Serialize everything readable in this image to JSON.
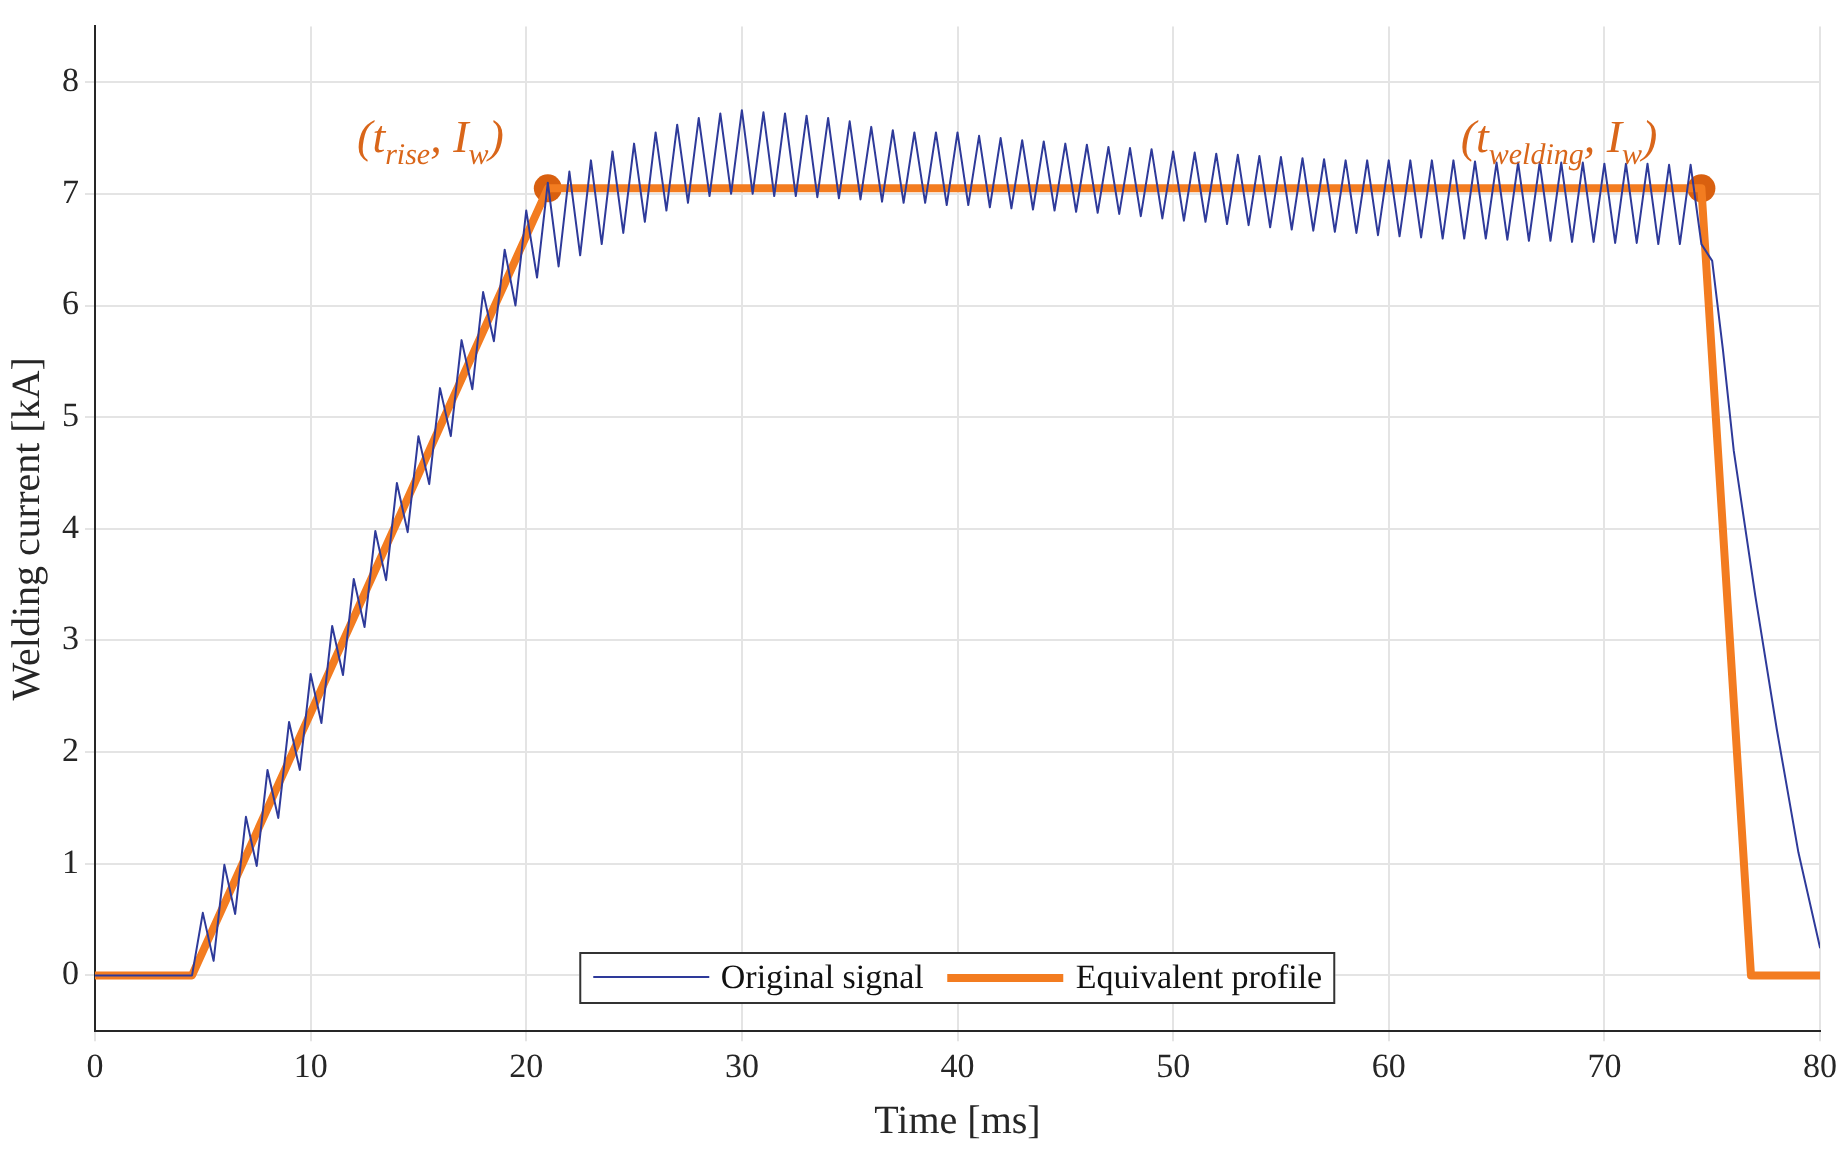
{
  "chart_data": {
    "type": "line",
    "xlabel": "Time [ms]",
    "ylabel": "Welding current [kA]",
    "xlim": [
      0,
      80
    ],
    "xticks": [
      0,
      10,
      20,
      30,
      40,
      50,
      60,
      70,
      80
    ],
    "ylim": [
      -0.5,
      8.5
    ],
    "yticks": [
      0,
      1,
      2,
      3,
      4,
      5,
      6,
      7,
      8
    ],
    "grid": true,
    "legend": "bottom",
    "marker": "none",
    "line_style": "solid",
    "annotations": [
      {
        "text": "(t$_{rise}$, I$_{w}$)",
        "x": 21,
        "y": 7.05
      },
      {
        "text": "(t$_{welding}$, I$_{w}$)",
        "x": 74.5,
        "y": 7.05
      }
    ],
    "series": [
      {
        "name": "Original signal",
        "color": "#2e3a9a",
        "x": [
          0,
          4.5,
          5,
          5.5,
          6,
          6.5,
          7,
          7.5,
          8,
          8.5,
          9,
          9.5,
          10,
          10.5,
          11,
          11.5,
          12,
          12.5,
          13,
          13.5,
          14,
          14.5,
          15,
          15.5,
          16,
          16.5,
          17,
          17.5,
          18,
          18.5,
          19,
          19.5,
          20,
          20.5,
          21,
          21.5,
          22,
          22.5,
          23,
          23.5,
          24,
          24.5,
          25,
          25.5,
          26,
          26.5,
          27,
          27.5,
          28,
          28.5,
          29,
          29.5,
          30,
          30.5,
          31,
          31.5,
          32,
          32.5,
          33,
          33.5,
          34,
          34.5,
          35,
          35.5,
          36,
          36.5,
          37,
          37.5,
          38,
          38.5,
          39,
          39.5,
          40,
          40.5,
          41,
          41.5,
          42,
          42.5,
          43,
          43.5,
          44,
          44.5,
          45,
          45.5,
          46,
          46.5,
          47,
          47.5,
          48,
          48.5,
          49,
          49.5,
          50,
          50.5,
          51,
          51.5,
          52,
          52.5,
          53,
          53.5,
          54,
          54.5,
          55,
          55.5,
          56,
          56.5,
          57,
          57.5,
          58,
          58.5,
          59,
          59.5,
          60,
          60.5,
          61,
          61.5,
          62,
          62.5,
          63,
          63.5,
          64,
          64.5,
          65,
          65.5,
          66,
          66.5,
          67,
          67.5,
          68,
          68.5,
          69,
          69.5,
          70,
          70.5,
          71,
          71.5,
          72,
          72.5,
          73,
          73.5,
          74,
          74.5,
          75,
          75.5,
          76,
          77,
          78,
          79,
          80
        ],
        "values": [
          0,
          0,
          0.56,
          0.13,
          0.99,
          0.55,
          1.42,
          0.98,
          1.84,
          1.41,
          2.27,
          1.84,
          2.7,
          2.26,
          3.13,
          2.69,
          3.55,
          3.12,
          3.98,
          3.54,
          4.41,
          3.97,
          4.83,
          4.4,
          5.26,
          4.83,
          5.69,
          5.25,
          6.12,
          5.68,
          6.5,
          6.0,
          6.85,
          6.25,
          7.1,
          6.35,
          7.2,
          6.45,
          7.3,
          6.55,
          7.38,
          6.65,
          7.45,
          6.75,
          7.55,
          6.85,
          7.62,
          6.92,
          7.68,
          6.98,
          7.72,
          7.0,
          7.75,
          7.0,
          7.73,
          6.98,
          7.72,
          6.98,
          7.7,
          6.97,
          7.68,
          6.96,
          7.65,
          6.95,
          7.6,
          6.93,
          7.57,
          6.92,
          7.55,
          6.92,
          7.55,
          6.9,
          7.55,
          6.9,
          7.52,
          6.88,
          7.5,
          6.87,
          7.48,
          6.86,
          7.47,
          6.85,
          7.45,
          6.84,
          7.44,
          6.83,
          7.42,
          6.82,
          7.41,
          6.8,
          7.4,
          6.78,
          7.38,
          6.76,
          7.37,
          6.75,
          7.36,
          6.73,
          7.35,
          6.72,
          7.34,
          6.7,
          7.33,
          6.68,
          7.32,
          6.67,
          7.31,
          6.66,
          7.3,
          6.65,
          7.3,
          6.63,
          7.3,
          6.62,
          7.3,
          6.61,
          7.3,
          6.6,
          7.3,
          6.6,
          7.29,
          6.6,
          7.28,
          6.59,
          7.28,
          6.58,
          7.28,
          6.58,
          7.28,
          6.57,
          7.28,
          6.57,
          7.27,
          6.56,
          7.27,
          6.56,
          7.27,
          6.55,
          7.26,
          6.55,
          7.26,
          6.55,
          6.4,
          5.6,
          4.7,
          3.4,
          2.2,
          1.1,
          0.25
        ]
      },
      {
        "name": "Equivalent profile",
        "color": "#f37c20",
        "x": [
          0,
          4.5,
          21,
          74.5,
          76.8,
          80
        ],
        "values": [
          0,
          0,
          7.05,
          7.05,
          0,
          0
        ]
      },
      {
        "color": "#d9600f",
        "type": "scatter",
        "marker": "circle",
        "x": [
          21,
          74.5
        ],
        "values": [
          7.05,
          7.05
        ]
      }
    ]
  }
}
